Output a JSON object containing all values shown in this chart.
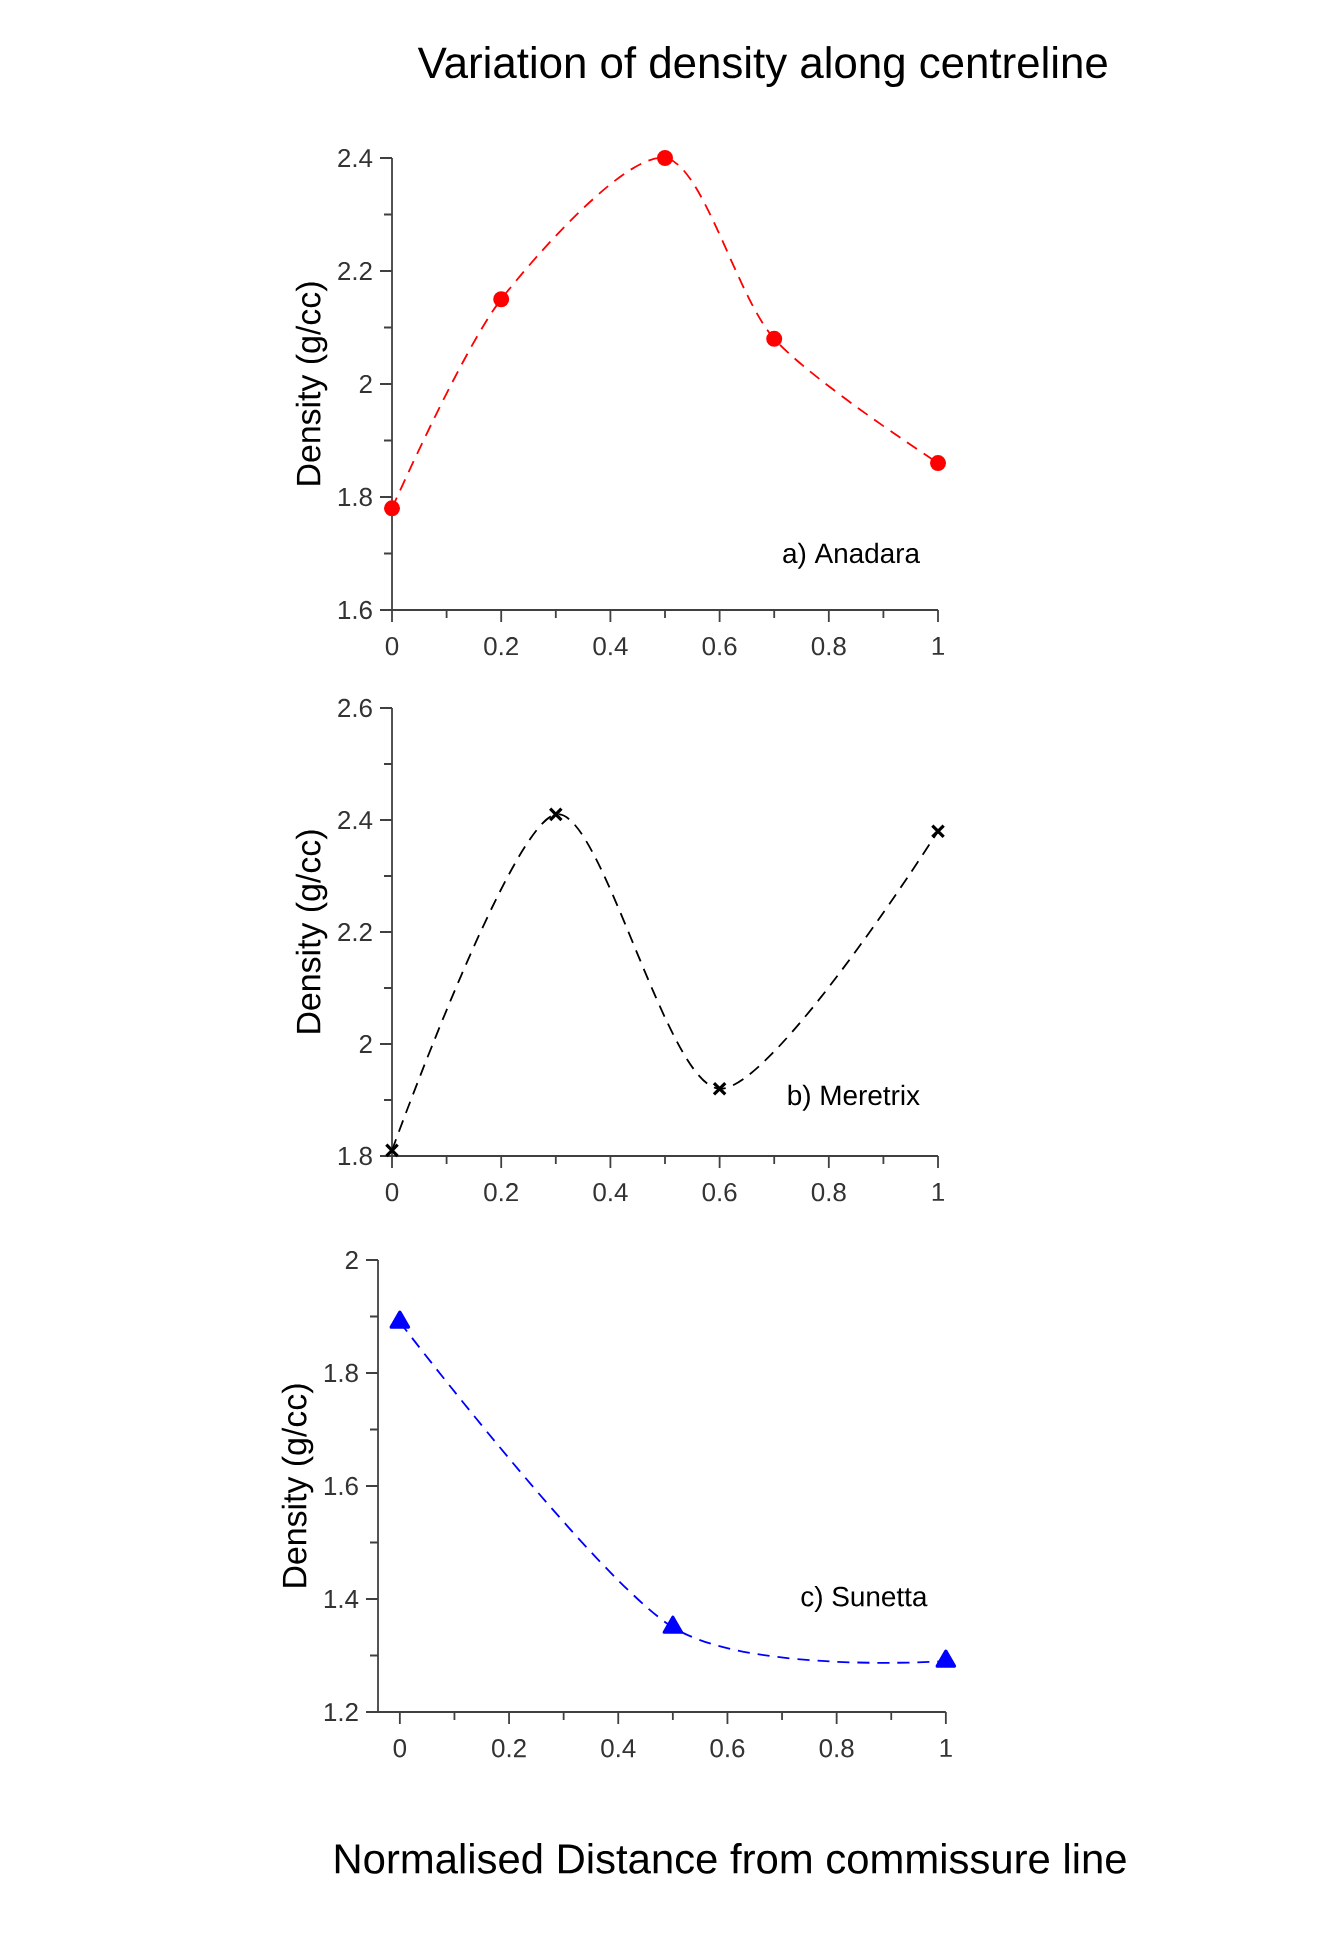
{
  "chart_data": [
    {
      "type": "line",
      "title": "Variation of density along centreline",
      "ylabel": "Density (g/cc)",
      "annotations": [
        "a) Anadara"
      ],
      "x": [
        0,
        0.2,
        0.5,
        0.7,
        1
      ],
      "series": [
        {
          "color": "#ff0000",
          "values": [
            1.78,
            2.15,
            2.4,
            2.08,
            1.86
          ]
        }
      ],
      "xlim": [
        0,
        1
      ],
      "ylim": [
        1.6,
        2.4
      ],
      "xticks": [
        0,
        0.2,
        0.4,
        0.6,
        0.8,
        1
      ],
      "yticks": [
        1.6,
        1.8,
        2,
        2.2,
        2.4
      ],
      "marker": "circle",
      "line_style": "dashed"
    },
    {
      "type": "line",
      "ylabel": "Density (g/cc)",
      "annotations": [
        "b) Meretrix"
      ],
      "x": [
        0,
        0.3,
        0.6,
        1
      ],
      "series": [
        {
          "color": "#000000",
          "values": [
            1.81,
            2.41,
            1.92,
            2.38
          ]
        }
      ],
      "xlim": [
        0,
        1
      ],
      "ylim": [
        1.8,
        2.6
      ],
      "xticks": [
        0,
        0.2,
        0.4,
        0.6,
        0.8,
        1
      ],
      "yticks": [
        1.8,
        2,
        2.2,
        2.4,
        2.6
      ],
      "marker": "cross",
      "line_style": "dashed"
    },
    {
      "type": "line",
      "ylabel": "Density (g/cc)",
      "xlabel": "Normalised Distance from commissure line",
      "annotations": [
        "c) Sunetta"
      ],
      "x": [
        0,
        0.5,
        1
      ],
      "series": [
        {
          "color": "#0000ff",
          "values": [
            1.89,
            1.35,
            1.29
          ]
        }
      ],
      "xlim": [
        -0.04,
        1
      ],
      "ylim": [
        1.2,
        2
      ],
      "xticks": [
        0,
        0.2,
        0.4,
        0.6,
        0.8,
        1
      ],
      "yticks": [
        1.2,
        1.4,
        1.6,
        1.8,
        2
      ],
      "marker": "triangle",
      "line_style": "dashed"
    }
  ]
}
